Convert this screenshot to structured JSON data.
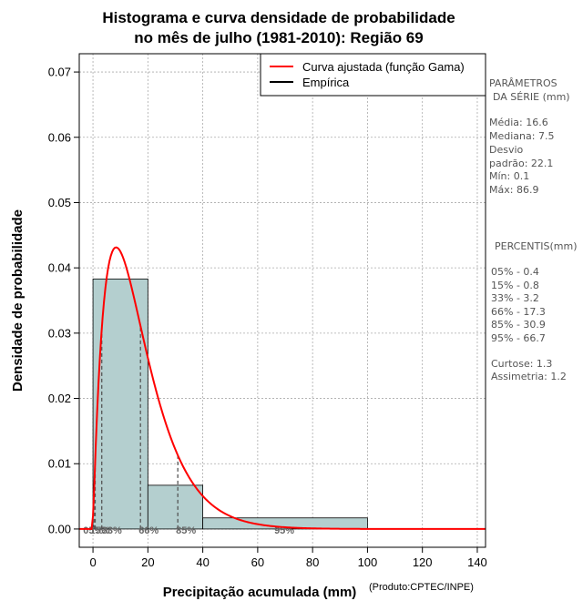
{
  "chart_data": {
    "type": "bar",
    "title": [
      "Histograma e curva densidade de probabilidade",
      "no mês de julho (1981-2010): Região 69"
    ],
    "xlabel": "Precipitação acumulada (mm)",
    "ylabel": "Densidade de probabilidade",
    "credit": "(Produto:CPTEC/INPE)",
    "xlim": [
      -5,
      143
    ],
    "ylim": [
      -0.0028,
      0.0728
    ],
    "xticks": [
      0,
      20,
      40,
      60,
      80,
      100,
      120,
      140
    ],
    "yticks": [
      0.0,
      0.01,
      0.02,
      0.03,
      0.04,
      0.05,
      0.06,
      0.07
    ],
    "ytick_labels": [
      "0.00",
      "0.01",
      "0.02",
      "0.03",
      "0.04",
      "0.05",
      "0.06",
      "0.07"
    ],
    "grid": true,
    "bins": [
      {
        "from": 0,
        "to": 20,
        "density": 0.0383
      },
      {
        "from": 20,
        "to": 40,
        "density": 0.0067
      },
      {
        "from": 40,
        "to": 100,
        "density": 0.0017
      }
    ],
    "fitted_curve": {
      "name": "Curva ajustada (função Gama)",
      "shape": 1.98,
      "scale": 8.6,
      "x_start": -5,
      "x_end": 143
    },
    "percentile_lines": [
      {
        "label": "05%",
        "x": 0.4
      },
      {
        "label": "15%",
        "x": 0.8
      },
      {
        "label": "33%",
        "x": 3.2
      },
      {
        "label": "66%",
        "x": 17.3
      },
      {
        "label": "85%",
        "x": 30.9
      },
      {
        "label": "95%",
        "x": 66.7
      }
    ],
    "legend": [
      {
        "label": "Curva ajustada (função Gama)",
        "color": "#ff0000"
      },
      {
        "label": "Empírica",
        "color": "#000000"
      }
    ],
    "legend_position": "top-right",
    "colors": {
      "bar_fill": "#b4cfcf",
      "curve": "#ff0000",
      "grid": "#aaaaaa",
      "percentile": "#555555"
    }
  },
  "side_panel": {
    "params_title_1": "PARÂMETROS",
    "params_title_2": "DA SÉRIE (mm)",
    "media": "Média:  16.6",
    "mediana": "Mediana:  7.5",
    "desvio_1": "Desvio",
    "desvio_2": "padrão:  22.1",
    "min": "Mín:  0.1",
    "max": "Máx:  86.9",
    "percentis_title": "PERCENTIS(mm)",
    "p05": "05% -   0.4",
    "p15": "15% -   0.8",
    "p33": "33% -   3.2",
    "p66": "66% -   17.3",
    "p85": "85% -   30.9",
    "p95": "95% -   66.7",
    "curtose": "Curtose:  1.3",
    "assimetria": "Assimetria:  1.2"
  }
}
